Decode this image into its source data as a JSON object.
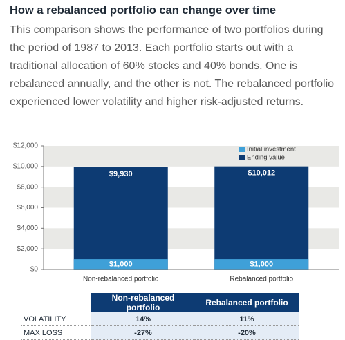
{
  "chart_data": {
    "type": "bar",
    "overlap": true,
    "title": "How a rebalanced portfolio can change over time",
    "subtitle": "This comparison shows the performance of two portfolios during the period of 1987 to 2013. Each portfolio starts out with a traditional allocation of 60% stocks and 40% bonds. One is rebalanced annually, and the other is not. The rebalanced portfolio experienced lower volatility and higher risk-adjusted returns.",
    "categories": [
      "Non-rebalanced portfolio",
      "Rebalanced portfolio"
    ],
    "series": [
      {
        "name": "Ending value",
        "color": "#0d3b73",
        "values": [
          9930,
          10012
        ],
        "value_labels": [
          "$9,930",
          "$10,012"
        ]
      },
      {
        "name": "Initial investment",
        "color": "#3fa0d8",
        "values": [
          1000,
          1000
        ],
        "value_labels": [
          "$1,000",
          "$1,000"
        ]
      }
    ],
    "legend_order": [
      1,
      0
    ],
    "legend": "top-right",
    "ylim": [
      0,
      12000
    ],
    "yticks": [
      {
        "value": 0,
        "label": "$0"
      },
      {
        "value": 2000,
        "label": "$2,000"
      },
      {
        "value": 4000,
        "label": "$4,000"
      },
      {
        "value": 6000,
        "label": "$6,000"
      },
      {
        "value": 8000,
        "label": "$8,000"
      },
      {
        "value": 10000,
        "label": "$10,000"
      },
      {
        "value": 12000,
        "label": "$12,000"
      }
    ],
    "grid_bands": true
  },
  "table": {
    "header": [
      "Non-rebalanced portfolio",
      "Rebalanced portfolio"
    ],
    "rows": [
      [
        "VOLATILITY",
        "14%",
        "11%"
      ],
      [
        "MAX LOSS",
        "-27%",
        "-20%"
      ]
    ]
  }
}
